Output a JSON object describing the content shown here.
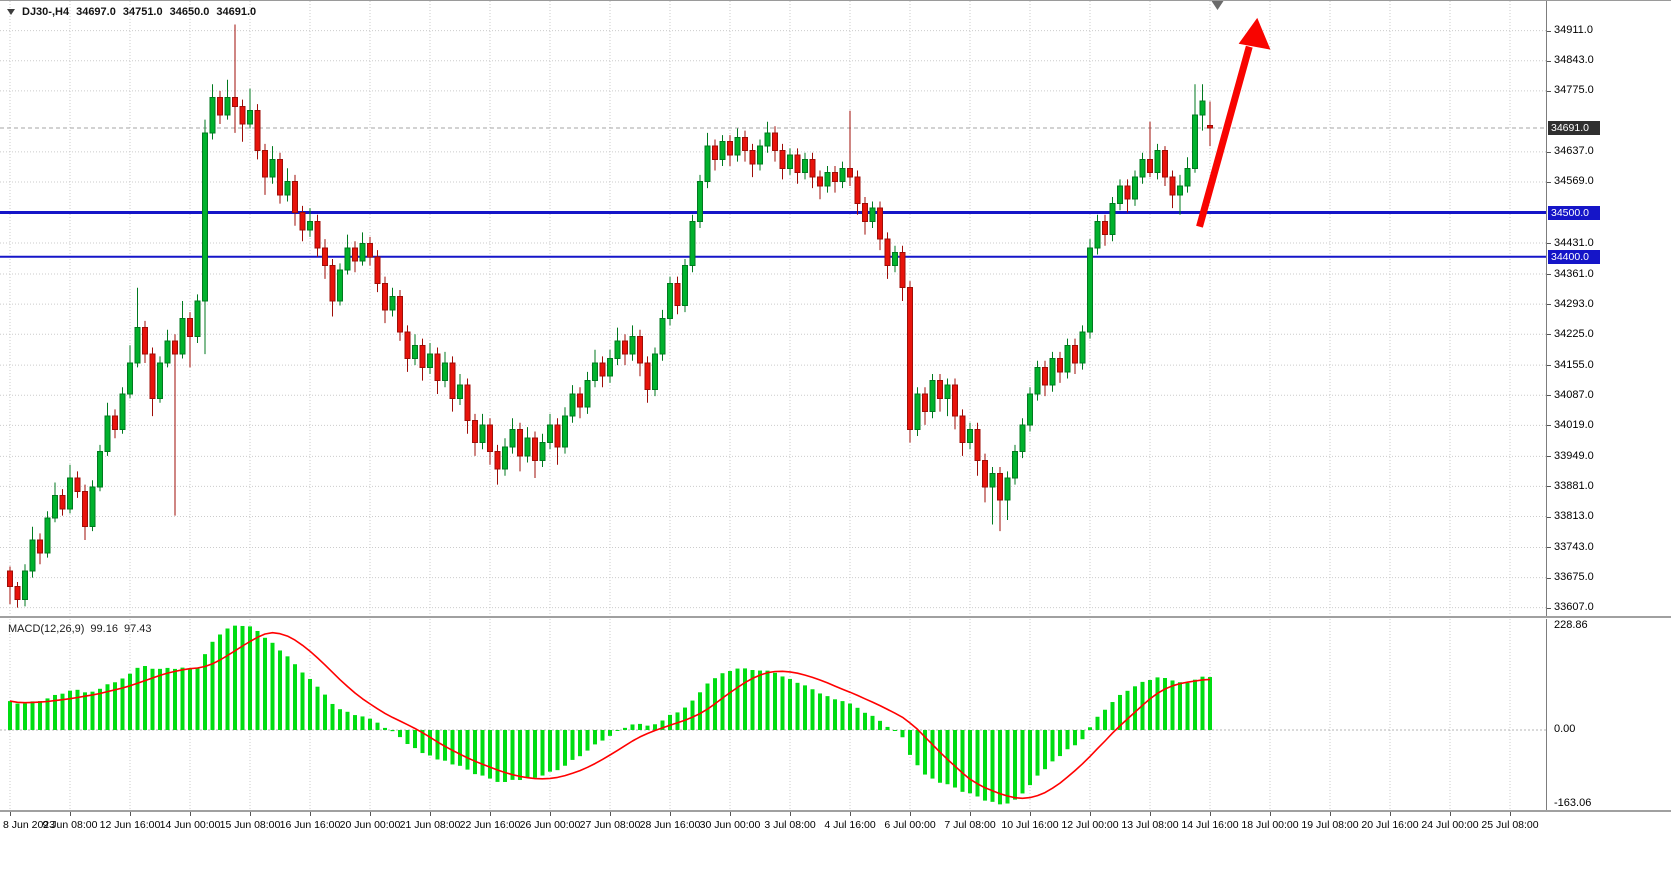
{
  "title": {
    "symbol": "DJ30-,H4",
    "open": "34697.0",
    "high": "34751.0",
    "low": "34650.0",
    "close": "34691.0"
  },
  "macd_panel": {
    "label": "MACD(12,26,9)",
    "value_main": "99.16",
    "value_signal": "97.43",
    "axis": [
      "228.86",
      "0.00",
      "-163.06"
    ]
  },
  "price_axis": {
    "current_label": "34691.0",
    "level_labels": [
      "34500.0",
      "34400.0"
    ]
  },
  "colors": {
    "background": "#ffffff",
    "grid": "#cbcbcb",
    "candle_up_fill": "#00b22d",
    "candle_up_stroke": "#007a1f",
    "candle_down_fill": "#e8130b",
    "candle_down_stroke": "#9f0d07",
    "histogram": "#00dd12",
    "signal_line": "#ff0000",
    "level_line": "#1515c8",
    "level_badge_bg": "#1515c8",
    "current_line": "#a6a6a6",
    "current_badge_bg": "#2f2f2f",
    "arrow": "#f80400",
    "axis_text": "#000000"
  },
  "chart_data": {
    "type": "candlestick",
    "symbol": "DJ30-",
    "timeframe": "H4",
    "title": "DJ30-,H4 34697.0 34751.0 34650.0 34691.0",
    "ylim": [
      33588,
      34978
    ],
    "grid": true,
    "y_ticks": [
      "34911.0",
      "34843.0",
      "34775.0",
      "34637.0",
      "34569.0",
      "34431.0",
      "34361.0",
      "34293.0",
      "34225.0",
      "34155.0",
      "34087.0",
      "34019.0",
      "33949.0",
      "33881.0",
      "33813.0",
      "33743.0",
      "33675.0",
      "33607.0"
    ],
    "x_labels": [
      "8 Jun 2023",
      "9 Jun 08:00",
      "12 Jun 16:00",
      "14 Jun 00:00",
      "15 Jun 08:00",
      "16 Jun 16:00",
      "20 Jun 00:00",
      "21 Jun 08:00",
      "22 Jun 16:00",
      "26 Jun 00:00",
      "27 Jun 08:00",
      "28 Jun 16:00",
      "30 Jun 00:00",
      "3 Jul 08:00",
      "4 Jul 16:00",
      "6 Jul 00:00",
      "7 Jul 08:00",
      "10 Jul 16:00",
      "12 Jul 00:00",
      "13 Jul 08:00",
      "14 Jul 16:00"
    ],
    "x_labels_projected": [
      "18 Jul 00:00",
      "19 Jul 08:00",
      "20 Jul 16:00",
      "24 Jul 00:00",
      "25 Jul 08:00"
    ],
    "bars_per_label": 8,
    "current_price": 34691.0,
    "levels": [
      {
        "price": 34500,
        "label": "34500.0",
        "width": 3
      },
      {
        "price": 34400,
        "label": "34400.0",
        "width": 2
      }
    ],
    "indicator": {
      "name": "MACD",
      "fast": 12,
      "slow": 26,
      "signal": 9,
      "value": 99.16,
      "signal_value": 97.43,
      "axis_max": 228.86,
      "axis_min": -163.06
    },
    "annotations": [
      {
        "type": "arrow-up",
        "from_bar": 158.6,
        "from_price": 34468,
        "to_bar": 166.3,
        "to_price": 34940,
        "color": "#f80400",
        "width": 7
      }
    ],
    "shift_marker_bar": 161,
    "candles": [
      [
        33690,
        33700,
        33615,
        33655
      ],
      [
        33655,
        33665,
        33607,
        33625
      ],
      [
        33625,
        33705,
        33610,
        33690
      ],
      [
        33690,
        33790,
        33675,
        33760
      ],
      [
        33760,
        33775,
        33705,
        33730
      ],
      [
        33730,
        33825,
        33720,
        33810
      ],
      [
        33810,
        33890,
        33800,
        33860
      ],
      [
        33860,
        33875,
        33815,
        33830
      ],
      [
        33830,
        33930,
        33820,
        33900
      ],
      [
        33900,
        33915,
        33855,
        33870
      ],
      [
        33870,
        33885,
        33760,
        33790
      ],
      [
        33790,
        33895,
        33780,
        33880
      ],
      [
        33880,
        33975,
        33870,
        33960
      ],
      [
        33960,
        34070,
        33950,
        34040
      ],
      [
        34040,
        34055,
        33990,
        34010
      ],
      [
        34010,
        34105,
        34000,
        34090
      ],
      [
        34090,
        34200,
        34080,
        34160
      ],
      [
        34160,
        34330,
        34150,
        34240
      ],
      [
        34240,
        34255,
        34160,
        34180
      ],
      [
        34180,
        34195,
        34040,
        34080
      ],
      [
        34080,
        34175,
        34070,
        34160
      ],
      [
        34160,
        34235,
        34150,
        34210
      ],
      [
        34210,
        34225,
        33815,
        34180
      ],
      [
        34180,
        34300,
        34170,
        34260
      ],
      [
        34260,
        34275,
        34150,
        34220
      ],
      [
        34220,
        34315,
        34205,
        34300
      ],
      [
        34300,
        34710,
        34180,
        34680
      ],
      [
        34680,
        34790,
        34665,
        34760
      ],
      [
        34760,
        34775,
        34700,
        34720
      ],
      [
        34720,
        34800,
        34710,
        34760
      ],
      [
        34760,
        34925,
        34680,
        34740
      ],
      [
        34740,
        34755,
        34660,
        34700
      ],
      [
        34700,
        34780,
        34690,
        34730
      ],
      [
        34730,
        34745,
        34620,
        34640
      ],
      [
        34640,
        34655,
        34540,
        34580
      ],
      [
        34580,
        34650,
        34565,
        34620
      ],
      [
        34620,
        34635,
        34520,
        34540
      ],
      [
        34540,
        34600,
        34525,
        34570
      ],
      [
        34570,
        34585,
        34470,
        34500
      ],
      [
        34500,
        34515,
        34435,
        34460
      ],
      [
        34460,
        34510,
        34445,
        34480
      ],
      [
        34480,
        34495,
        34400,
        34420
      ],
      [
        34420,
        34440,
        34350,
        34380
      ],
      [
        34380,
        34395,
        34265,
        34300
      ],
      [
        34300,
        34385,
        34290,
        34370
      ],
      [
        34370,
        34450,
        34360,
        34420
      ],
      [
        34420,
        34435,
        34365,
        34390
      ],
      [
        34390,
        34455,
        34380,
        34430
      ],
      [
        34430,
        34445,
        34380,
        34400
      ],
      [
        34400,
        34415,
        34320,
        34340
      ],
      [
        34340,
        34355,
        34250,
        34280
      ],
      [
        34280,
        34330,
        34265,
        34310
      ],
      [
        34310,
        34325,
        34210,
        34230
      ],
      [
        34230,
        34245,
        34140,
        34170
      ],
      [
        34170,
        34225,
        34155,
        34200
      ],
      [
        34200,
        34215,
        34120,
        34150
      ],
      [
        34150,
        34205,
        34135,
        34180
      ],
      [
        34180,
        34195,
        34090,
        34120
      ],
      [
        34120,
        34185,
        34105,
        34160
      ],
      [
        34160,
        34175,
        34050,
        34080
      ],
      [
        34080,
        34135,
        34065,
        34110
      ],
      [
        34110,
        34125,
        34000,
        34030
      ],
      [
        34030,
        34045,
        33950,
        33980
      ],
      [
        33980,
        34045,
        33965,
        34020
      ],
      [
        34020,
        34035,
        33930,
        33960
      ],
      [
        33960,
        33975,
        33885,
        33920
      ],
      [
        33920,
        33990,
        33905,
        33970
      ],
      [
        33970,
        34035,
        33955,
        34010
      ],
      [
        34010,
        34025,
        33915,
        33950
      ],
      [
        33950,
        34015,
        33935,
        33990
      ],
      [
        33990,
        34005,
        33900,
        33940
      ],
      [
        33940,
        34000,
        33925,
        33980
      ],
      [
        33980,
        34045,
        33965,
        34020
      ],
      [
        34020,
        34035,
        33930,
        33970
      ],
      [
        33970,
        34060,
        33955,
        34040
      ],
      [
        34040,
        34110,
        34025,
        34090
      ],
      [
        34090,
        34105,
        34035,
        34060
      ],
      [
        34060,
        34140,
        34045,
        34120
      ],
      [
        34120,
        34190,
        34105,
        34160
      ],
      [
        34160,
        34175,
        34105,
        34130
      ],
      [
        34130,
        34190,
        34115,
        34170
      ],
      [
        34170,
        34240,
        34155,
        34210
      ],
      [
        34210,
        34225,
        34155,
        34180
      ],
      [
        34180,
        34245,
        34165,
        34220
      ],
      [
        34220,
        34235,
        34130,
        34160
      ],
      [
        34160,
        34175,
        34070,
        34100
      ],
      [
        34100,
        34195,
        34085,
        34180
      ],
      [
        34180,
        34280,
        34165,
        34260
      ],
      [
        34260,
        34355,
        34245,
        34340
      ],
      [
        34340,
        34355,
        34270,
        34290
      ],
      [
        34290,
        34395,
        34275,
        34380
      ],
      [
        34380,
        34495,
        34365,
        34480
      ],
      [
        34480,
        34585,
        34465,
        34570
      ],
      [
        34570,
        34680,
        34555,
        34650
      ],
      [
        34650,
        34665,
        34595,
        34620
      ],
      [
        34620,
        34675,
        34605,
        34660
      ],
      [
        34660,
        34675,
        34605,
        34630
      ],
      [
        34630,
        34690,
        34615,
        34670
      ],
      [
        34670,
        34685,
        34615,
        34640
      ],
      [
        34640,
        34655,
        34580,
        34610
      ],
      [
        34610,
        34665,
        34595,
        34650
      ],
      [
        34650,
        34705,
        34635,
        34680
      ],
      [
        34680,
        34695,
        34615,
        34640
      ],
      [
        34640,
        34655,
        34575,
        34600
      ],
      [
        34600,
        34645,
        34585,
        34630
      ],
      [
        34630,
        34645,
        34565,
        34590
      ],
      [
        34590,
        34635,
        34575,
        34620
      ],
      [
        34620,
        34635,
        34555,
        34580
      ],
      [
        34580,
        34595,
        34530,
        34560
      ],
      [
        34560,
        34605,
        34545,
        34590
      ],
      [
        34590,
        34605,
        34545,
        34570
      ],
      [
        34570,
        34615,
        34555,
        34600
      ],
      [
        34600,
        34730,
        34560,
        34580
      ],
      [
        34580,
        34595,
        34495,
        34520
      ],
      [
        34520,
        34535,
        34450,
        34480
      ],
      [
        34480,
        34525,
        34465,
        34510
      ],
      [
        34510,
        34525,
        34415,
        34440
      ],
      [
        34440,
        34455,
        34350,
        34380
      ],
      [
        34380,
        34425,
        34365,
        34410
      ],
      [
        34410,
        34425,
        34300,
        34330
      ],
      [
        34330,
        34345,
        33980,
        34010
      ],
      [
        34010,
        34105,
        33995,
        34090
      ],
      [
        34090,
        34105,
        34020,
        34050
      ],
      [
        34050,
        34135,
        34035,
        34120
      ],
      [
        34120,
        34135,
        34050,
        34080
      ],
      [
        34080,
        34125,
        34040,
        34110
      ],
      [
        34110,
        34125,
        34010,
        34040
      ],
      [
        34040,
        34055,
        33950,
        33980
      ],
      [
        33980,
        34025,
        33965,
        34010
      ],
      [
        34010,
        34025,
        33905,
        33940
      ],
      [
        33940,
        33955,
        33845,
        33880
      ],
      [
        33880,
        33925,
        33795,
        33910
      ],
      [
        33910,
        33925,
        33780,
        33850
      ],
      [
        33850,
        33915,
        33805,
        33900
      ],
      [
        33900,
        33975,
        33885,
        33960
      ],
      [
        33960,
        34035,
        33945,
        34020
      ],
      [
        34020,
        34105,
        34005,
        34090
      ],
      [
        34090,
        34165,
        34075,
        34150
      ],
      [
        34150,
        34165,
        34085,
        34110
      ],
      [
        34110,
        34185,
        34095,
        34170
      ],
      [
        34170,
        34185,
        34115,
        34140
      ],
      [
        34140,
        34215,
        34125,
        34200
      ],
      [
        34200,
        34215,
        34135,
        34160
      ],
      [
        34160,
        34245,
        34145,
        34230
      ],
      [
        34230,
        34440,
        34215,
        34420
      ],
      [
        34420,
        34495,
        34405,
        34480
      ],
      [
        34480,
        34495,
        34425,
        34450
      ],
      [
        34450,
        34535,
        34435,
        34520
      ],
      [
        34520,
        34575,
        34505,
        34560
      ],
      [
        34560,
        34575,
        34500,
        34530
      ],
      [
        34530,
        34595,
        34515,
        34580
      ],
      [
        34580,
        34635,
        34565,
        34620
      ],
      [
        34620,
        34705,
        34580,
        34590
      ],
      [
        34590,
        34655,
        34575,
        34640
      ],
      [
        34640,
        34650,
        34560,
        34580
      ],
      [
        34580,
        34595,
        34510,
        34540
      ],
      [
        34540,
        34585,
        34495,
        34560
      ],
      [
        34560,
        34625,
        34545,
        34600
      ],
      [
        34600,
        34790,
        34590,
        34720
      ],
      [
        34720,
        34790,
        34685,
        34752
      ],
      [
        34697,
        34751,
        34650,
        34691
      ]
    ]
  }
}
